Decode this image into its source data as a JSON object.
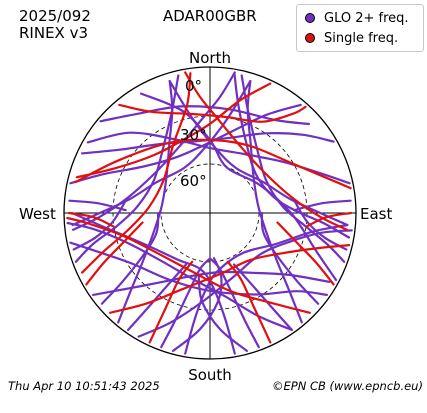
{
  "header": {
    "date": "2025/092",
    "rinex": "RINEX v3",
    "station": "ADAR00GBR"
  },
  "legend": [
    {
      "label": "GLO 2+ freq.",
      "color": "#7030c0"
    },
    {
      "label": "Single freq.",
      "color": "#e01010"
    }
  ],
  "footer": {
    "time": "Thu Apr 10 10:51:43 2025",
    "credit": "©EPN CB (www.epncb.eu)"
  },
  "chart_data": {
    "type": "polar-skyplot",
    "directions": {
      "north": "North",
      "south": "South",
      "east": "East",
      "west": "West"
    },
    "elevation_rings": [
      {
        "label": "0°",
        "elevation": 0
      },
      {
        "label": "30°",
        "elevation": 30
      },
      {
        "label": "60°",
        "elevation": 60
      }
    ],
    "colors": {
      "multi": "#7030c0",
      "single": "#e01010"
    },
    "tracks": [
      {
        "type": "multi",
        "pts": [
          [
            330,
            5
          ],
          [
            345,
            25
          ],
          [
            0,
            45
          ],
          [
            20,
            60
          ],
          [
            60,
            55
          ],
          [
            90,
            40
          ],
          [
            110,
            20
          ],
          [
            118,
            2
          ]
        ]
      },
      {
        "type": "multi",
        "pts": [
          [
            300,
            3
          ],
          [
            315,
            20
          ],
          [
            335,
            40
          ],
          [
            0,
            50
          ],
          [
            30,
            48
          ],
          [
            55,
            35
          ],
          [
            70,
            18
          ],
          [
            78,
            2
          ]
        ]
      },
      {
        "type": "single",
        "pts": [
          [
            283,
            5
          ],
          [
            300,
            25
          ],
          [
            330,
            40
          ],
          [
            0,
            45
          ],
          [
            30,
            42
          ],
          [
            60,
            30
          ],
          [
            75,
            12
          ],
          [
            80,
            2
          ]
        ]
      },
      {
        "type": "multi",
        "pts": [
          [
            40,
            3
          ],
          [
            30,
            20
          ],
          [
            15,
            38
          ],
          [
            355,
            48
          ],
          [
            330,
            50
          ],
          [
            305,
            40
          ],
          [
            290,
            20
          ],
          [
            282,
            2
          ]
        ]
      },
      {
        "type": "single",
        "pts": [
          [
            25,
            2
          ],
          [
            15,
            18
          ],
          [
            0,
            35
          ],
          [
            340,
            42
          ],
          [
            315,
            40
          ],
          [
            295,
            25
          ],
          [
            285,
            5
          ]
        ]
      },
      {
        "type": "multi",
        "pts": [
          [
            60,
            2
          ],
          [
            50,
            15
          ],
          [
            35,
            30
          ],
          [
            15,
            42
          ],
          [
            350,
            45
          ],
          [
            325,
            38
          ],
          [
            305,
            22
          ],
          [
            295,
            3
          ]
        ]
      },
      {
        "type": "multi",
        "pts": [
          [
            210,
            2
          ],
          [
            200,
            18
          ],
          [
            185,
            35
          ],
          [
            160,
            48
          ],
          [
            130,
            50
          ],
          [
            110,
            38
          ],
          [
            100,
            20
          ],
          [
            97,
            2
          ]
        ]
      },
      {
        "type": "single",
        "pts": [
          [
            225,
            3
          ],
          [
            215,
            22
          ],
          [
            200,
            40
          ],
          [
            170,
            52
          ],
          [
            140,
            52
          ],
          [
            120,
            40
          ],
          [
            108,
            20
          ],
          [
            103,
            2
          ]
        ]
      },
      {
        "type": "multi",
        "pts": [
          [
            235,
            2
          ],
          [
            228,
            20
          ],
          [
            215,
            38
          ],
          [
            195,
            50
          ],
          [
            170,
            53
          ],
          [
            145,
            45
          ],
          [
            128,
            28
          ],
          [
            120,
            5
          ]
        ]
      },
      {
        "type": "multi",
        "pts": [
          [
            145,
            2
          ],
          [
            155,
            20
          ],
          [
            170,
            38
          ],
          [
            195,
            48
          ],
          [
            225,
            48
          ],
          [
            250,
            36
          ],
          [
            262,
            18
          ],
          [
            266,
            2
          ]
        ]
      },
      {
        "type": "single",
        "pts": [
          [
            135,
            3
          ],
          [
            145,
            22
          ],
          [
            165,
            40
          ],
          [
            195,
            52
          ],
          [
            230,
            50
          ],
          [
            255,
            35
          ],
          [
            265,
            15
          ],
          [
            268,
            2
          ]
        ]
      },
      {
        "type": "multi",
        "pts": [
          [
            125,
            2
          ],
          [
            132,
            18
          ],
          [
            150,
            32
          ],
          [
            180,
            42
          ],
          [
            210,
            42
          ],
          [
            238,
            32
          ],
          [
            252,
            15
          ],
          [
            258,
            2
          ]
        ]
      },
      {
        "type": "multi",
        "pts": [
          [
            170,
            2
          ],
          [
            172,
            25
          ],
          [
            178,
            45
          ],
          [
            190,
            55
          ],
          [
            215,
            55
          ],
          [
            245,
            45
          ],
          [
            262,
            25
          ],
          [
            270,
            5
          ]
        ]
      },
      {
        "type": "multi",
        "pts": [
          [
            190,
            2
          ],
          [
            188,
            25
          ],
          [
            182,
            45
          ],
          [
            170,
            55
          ],
          [
            140,
            58
          ],
          [
            115,
            45
          ],
          [
            100,
            25
          ],
          [
            95,
            5
          ]
        ]
      },
      {
        "type": "multi",
        "pts": [
          [
            250,
            2
          ],
          [
            255,
            15
          ],
          [
            262,
            32
          ],
          [
            275,
            45
          ],
          [
            300,
            50
          ],
          [
            325,
            40
          ],
          [
            340,
            22
          ],
          [
            347,
            3
          ]
        ]
      },
      {
        "type": "single",
        "pts": [
          [
            245,
            3
          ],
          [
            250,
            20
          ],
          [
            258,
            38
          ],
          [
            275,
            52
          ],
          [
            305,
            55
          ],
          [
            332,
            42
          ],
          [
            348,
            22
          ],
          [
            352,
            3
          ]
        ]
      },
      {
        "type": "multi",
        "pts": [
          [
            110,
            2
          ],
          [
            105,
            15
          ],
          [
            97,
            32
          ],
          [
            85,
            45
          ],
          [
            60,
            50
          ],
          [
            35,
            40
          ],
          [
            20,
            22
          ],
          [
            13,
            3
          ]
        ]
      },
      {
        "type": "multi",
        "pts": [
          [
            100,
            3
          ],
          [
            95,
            20
          ],
          [
            88,
            38
          ],
          [
            75,
            50
          ],
          [
            50,
            53
          ],
          [
            28,
            42
          ],
          [
            15,
            22
          ],
          [
            10,
            3
          ]
        ]
      },
      {
        "type": "multi",
        "pts": [
          [
            265,
            5
          ],
          [
            270,
            22
          ],
          [
            280,
            40
          ],
          [
            300,
            52
          ],
          [
            330,
            58
          ],
          [
            355,
            50
          ],
          [
            10,
            32
          ],
          [
            17,
            5
          ]
        ]
      },
      {
        "type": "multi",
        "pts": [
          [
            95,
            5
          ],
          [
            90,
            22
          ],
          [
            80,
            40
          ],
          [
            60,
            52
          ],
          [
            30,
            58
          ],
          [
            5,
            50
          ],
          [
            350,
            32
          ],
          [
            343,
            5
          ]
        ]
      },
      {
        "type": "multi",
        "pts": [
          [
            200,
            2
          ],
          [
            198,
            20
          ],
          [
            195,
            40
          ],
          [
            190,
            55
          ],
          [
            180,
            62
          ]
        ]
      },
      {
        "type": "multi",
        "pts": [
          [
            160,
            2
          ],
          [
            162,
            20
          ],
          [
            165,
            40
          ],
          [
            170,
            55
          ],
          [
            180,
            62
          ]
        ]
      },
      {
        "type": "single",
        "pts": [
          [
            205,
            2
          ],
          [
            205,
            25
          ],
          [
            205,
            45
          ],
          [
            200,
            58
          ]
        ]
      },
      {
        "type": "single",
        "pts": [
          [
            155,
            2
          ],
          [
            155,
            25
          ],
          [
            155,
            45
          ],
          [
            160,
            58
          ]
        ]
      },
      {
        "type": "multi",
        "pts": [
          [
            215,
            2
          ],
          [
            213,
            22
          ],
          [
            210,
            40
          ],
          [
            205,
            55
          ]
        ]
      },
      {
        "type": "multi",
        "pts": [
          [
            145,
            2
          ],
          [
            147,
            22
          ],
          [
            150,
            40
          ],
          [
            155,
            55
          ]
        ]
      },
      {
        "type": "multi",
        "pts": [
          [
            230,
            3
          ],
          [
            232,
            22
          ],
          [
            238,
            42
          ],
          [
            250,
            55
          ],
          [
            270,
            58
          ]
        ]
      },
      {
        "type": "multi",
        "pts": [
          [
            130,
            3
          ],
          [
            128,
            22
          ],
          [
            122,
            42
          ],
          [
            110,
            55
          ],
          [
            90,
            58
          ]
        ]
      },
      {
        "type": "single",
        "pts": [
          [
            240,
            2
          ],
          [
            245,
            18
          ],
          [
            252,
            35
          ],
          [
            262,
            48
          ]
        ]
      },
      {
        "type": "single",
        "pts": [
          [
            120,
            2
          ],
          [
            115,
            18
          ],
          [
            108,
            35
          ],
          [
            98,
            48
          ]
        ]
      },
      {
        "type": "multi",
        "pts": [
          [
            255,
            3
          ],
          [
            258,
            18
          ],
          [
            265,
            30
          ],
          [
            280,
            38
          ]
        ]
      },
      {
        "type": "multi",
        "pts": [
          [
            105,
            3
          ],
          [
            102,
            18
          ],
          [
            95,
            30
          ],
          [
            80,
            38
          ]
        ]
      },
      {
        "type": "multi",
        "pts": [
          [
            275,
            3
          ],
          [
            275,
            20
          ],
          [
            272,
            38
          ]
        ]
      },
      {
        "type": "multi",
        "pts": [
          [
            85,
            3
          ],
          [
            85,
            20
          ],
          [
            88,
            38
          ]
        ]
      },
      {
        "type": "single",
        "pts": [
          [
            270,
            3
          ],
          [
            268,
            18
          ],
          [
            262,
            30
          ]
        ]
      },
      {
        "type": "single",
        "pts": [
          [
            90,
            3
          ],
          [
            92,
            18
          ],
          [
            98,
            30
          ]
        ]
      },
      {
        "type": "multi",
        "pts": [
          [
            195,
            2
          ],
          [
            185,
            18
          ],
          [
            175,
            35
          ],
          [
            170,
            50
          ],
          [
            175,
            62
          ]
        ]
      },
      {
        "type": "multi",
        "pts": [
          [
            165,
            2
          ],
          [
            175,
            18
          ],
          [
            185,
            35
          ],
          [
            190,
            50
          ]
        ]
      },
      {
        "type": "multi",
        "pts": [
          [
            220,
            2
          ],
          [
            225,
            20
          ],
          [
            235,
            40
          ],
          [
            255,
            55
          ],
          [
            280,
            60
          ],
          [
            310,
            55
          ],
          [
            330,
            40
          ],
          [
            340,
            22
          ],
          [
            343,
            5
          ]
        ]
      },
      {
        "type": "multi",
        "pts": [
          [
            140,
            2
          ],
          [
            135,
            20
          ],
          [
            125,
            40
          ],
          [
            105,
            55
          ],
          [
            80,
            60
          ],
          [
            50,
            55
          ],
          [
            30,
            40
          ],
          [
            20,
            22
          ],
          [
            17,
            5
          ]
        ]
      },
      {
        "type": "single",
        "pts": [
          [
            320,
            3
          ],
          [
            330,
            18
          ],
          [
            350,
            28
          ],
          [
            10,
            30
          ],
          [
            30,
            25
          ],
          [
            40,
            10
          ],
          [
            42,
            2
          ]
        ]
      },
      {
        "type": "multi",
        "pts": [
          [
            310,
            2
          ],
          [
            325,
            15
          ],
          [
            345,
            22
          ],
          [
            10,
            25
          ],
          [
            35,
            20
          ],
          [
            48,
            8
          ]
        ]
      },
      {
        "type": "single",
        "pts": [
          [
            350,
            2
          ],
          [
            355,
            18
          ],
          [
            5,
            32
          ],
          [
            25,
            45
          ],
          [
            55,
            48
          ],
          [
            80,
            38
          ],
          [
            92,
            22
          ],
          [
            97,
            5
          ]
        ]
      },
      {
        "type": "multi",
        "pts": [
          [
            10,
            2
          ],
          [
            5,
            18
          ],
          [
            355,
            32
          ],
          [
            335,
            45
          ],
          [
            305,
            48
          ],
          [
            280,
            38
          ],
          [
            268,
            22
          ],
          [
            263,
            5
          ]
        ]
      }
    ]
  }
}
